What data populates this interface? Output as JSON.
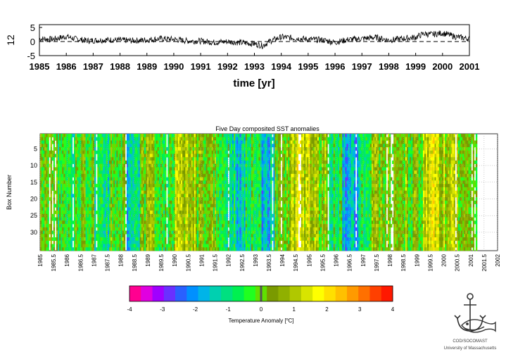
{
  "chart_data": [
    {
      "type": "line",
      "title": "",
      "ylabel": "12",
      "xlabel": "time [yr]",
      "xlim": [
        1985,
        2001
      ],
      "ylim": [
        -5,
        6
      ],
      "y_ticks": [
        "5",
        "0",
        "-5"
      ],
      "x_ticks": [
        "1985",
        "1986",
        "1987",
        "1988",
        "1989",
        "1990",
        "1991",
        "1992",
        "1993",
        "1994",
        "1995",
        "1996",
        "1997",
        "1998",
        "1999",
        "2000",
        "2001"
      ],
      "zero_line": "dashed",
      "series": [
        {
          "x": [
            1985.0,
            1985.5,
            1986.0,
            1986.3,
            1986.8,
            1987.5,
            1988.0,
            1988.5,
            1989.0,
            1989.5,
            1990.0,
            1990.5,
            1991.0,
            1991.5,
            1992.0,
            1992.5,
            1993.0,
            1993.3,
            1993.6,
            1994.0,
            1994.5,
            1995.0,
            1995.5,
            1996.0,
            1996.5,
            1997.0,
            1997.5,
            1998.0,
            1998.5,
            1999.0,
            1999.3,
            1999.6,
            2000.0,
            2000.5,
            2001.0
          ],
          "y": [
            1.0,
            0.8,
            1.8,
            1.0,
            0.3,
            0.6,
            0.5,
            0.3,
            0.6,
            1.0,
            0.8,
            0.2,
            0.2,
            -0.3,
            0.0,
            -0.4,
            -0.8,
            -1.5,
            0.2,
            1.6,
            1.2,
            0.8,
            0.6,
            -0.3,
            0.7,
            1.0,
            1.5,
            0.5,
            1.0,
            1.5,
            2.8,
            2.5,
            3.0,
            1.7,
            1.0
          ]
        }
      ]
    },
    {
      "type": "heatmap",
      "title": "Five Day composited SST anomalies",
      "ylabel": "Box Number",
      "xlabel": "",
      "xlim": [
        1985,
        2002
      ],
      "ylim": [
        35,
        1
      ],
      "y_ticks": [
        "5",
        "10",
        "15",
        "20",
        "25",
        "30"
      ],
      "x_ticks": [
        "1985",
        "1985.5",
        "1986",
        "1986.5",
        "1987",
        "1987.5",
        "1988",
        "1988.5",
        "1989",
        "1989.5",
        "1990",
        "1990.5",
        "1991",
        "1991.5",
        "1992",
        "1992.5",
        "1993",
        "1993.5",
        "1994",
        "1994.5",
        "1995",
        "1995.5",
        "1996",
        "1996.5",
        "1997",
        "1997.5",
        "1998",
        "1998.5",
        "1999",
        "1999.5",
        "2000",
        "2000.5",
        "2001",
        "2001.5",
        "2002"
      ],
      "period_anomaly": [
        {
          "start": 1985.0,
          "end": 1985.6,
          "value": 0.2
        },
        {
          "start": 1985.6,
          "end": 1986.3,
          "value": -0.6
        },
        {
          "start": 1986.3,
          "end": 1987.0,
          "value": 0.1
        },
        {
          "start": 1987.0,
          "end": 1987.6,
          "value": -0.8
        },
        {
          "start": 1987.6,
          "end": 1988.2,
          "value": 0.0
        },
        {
          "start": 1988.2,
          "end": 1988.7,
          "value": -1.5
        },
        {
          "start": 1988.7,
          "end": 1989.3,
          "value": 0.3
        },
        {
          "start": 1989.3,
          "end": 1990.0,
          "value": -0.5
        },
        {
          "start": 1990.0,
          "end": 1990.8,
          "value": 0.9
        },
        {
          "start": 1990.8,
          "end": 1991.5,
          "value": 0.2
        },
        {
          "start": 1991.5,
          "end": 1992.0,
          "value": -0.4
        },
        {
          "start": 1992.0,
          "end": 1992.6,
          "value": -1.4
        },
        {
          "start": 1992.6,
          "end": 1993.2,
          "value": -0.3
        },
        {
          "start": 1993.2,
          "end": 1993.7,
          "value": -1.6
        },
        {
          "start": 1993.7,
          "end": 1994.3,
          "value": 0.3
        },
        {
          "start": 1994.3,
          "end": 1995.0,
          "value": 1.2
        },
        {
          "start": 1995.0,
          "end": 1995.7,
          "value": 0.4
        },
        {
          "start": 1995.7,
          "end": 1996.2,
          "value": -0.6
        },
        {
          "start": 1996.2,
          "end": 1996.8,
          "value": -1.8
        },
        {
          "start": 1996.8,
          "end": 1997.3,
          "value": -0.9
        },
        {
          "start": 1997.3,
          "end": 1998.0,
          "value": 0.3
        },
        {
          "start": 1998.0,
          "end": 1998.6,
          "value": 0.6
        },
        {
          "start": 1998.6,
          "end": 1999.2,
          "value": 0.2
        },
        {
          "start": 1999.2,
          "end": 1999.8,
          "value": 1.5
        },
        {
          "start": 1999.8,
          "end": 2000.5,
          "value": 0.8
        },
        {
          "start": 2000.5,
          "end": 2001.2,
          "value": 0.0
        }
      ],
      "colorbar": {
        "label": "Temperature Anomaly [",
        "unit_sup": "o",
        "unit": "C]",
        "range": [
          -4,
          4
        ],
        "ticks": [
          "-4",
          "-3",
          "-2",
          "-1",
          "0",
          "1",
          "2",
          "3",
          "4"
        ],
        "colors": [
          "#ff0090",
          "#e000e0",
          "#a000ff",
          "#6a30ff",
          "#2a60ff",
          "#0090ff",
          "#00b4e8",
          "#00d0b0",
          "#00e080",
          "#00f050",
          "#20ff20",
          "#60e000",
          "#7a9a00",
          "#90b000",
          "#b0c800",
          "#d8e400",
          "#ffff00",
          "#ffe000",
          "#ffc000",
          "#ff9a00",
          "#ff7000",
          "#ff4000",
          "#ff1800"
        ]
      }
    }
  ],
  "logo": {
    "line1": "COD/SOCOMAST",
    "line2": "University of Massachusetts"
  }
}
